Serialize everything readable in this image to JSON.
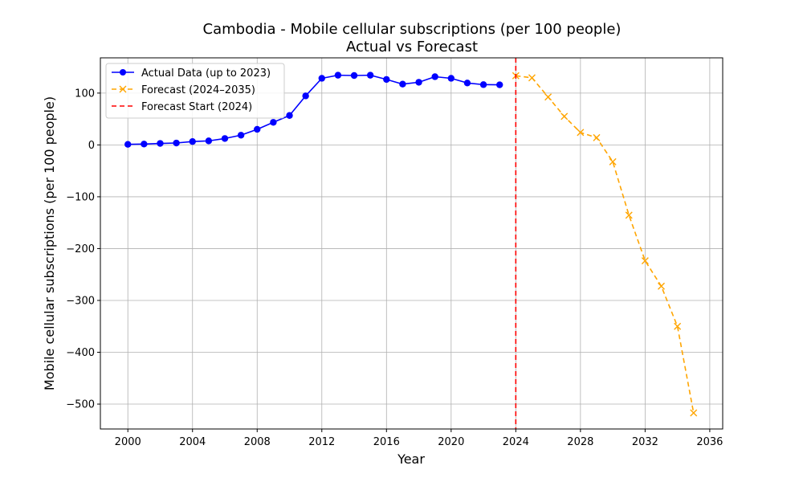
{
  "chart_data": {
    "type": "line",
    "title": "Cambodia - Mobile cellular subscriptions (per 100 people)",
    "subtitle": "Actual vs Forecast",
    "xlabel": "Year",
    "ylabel": "Mobile cellular subscriptions (per 100 people)",
    "xlim": [
      1998.3,
      2036.8
    ],
    "ylim": [
      -548,
      168
    ],
    "xticks": [
      2000,
      2004,
      2008,
      2012,
      2016,
      2020,
      2024,
      2028,
      2032,
      2036
    ],
    "yticks": [
      -500,
      -400,
      -300,
      -200,
      -100,
      0,
      100
    ],
    "grid": true,
    "legend_position": "top-left",
    "series": [
      {
        "name": "Actual Data (up to 2023)",
        "color": "#0000ff",
        "line_style": "solid",
        "marker": "circle",
        "x": [
          2000,
          2001,
          2002,
          2003,
          2004,
          2005,
          2006,
          2007,
          2008,
          2009,
          2010,
          2011,
          2012,
          2013,
          2014,
          2015,
          2016,
          2017,
          2018,
          2019,
          2020,
          2021,
          2022,
          2023
        ],
        "y": [
          1.1,
          1.7,
          2.9,
          3.7,
          6.5,
          7.8,
          12.4,
          18.8,
          30.1,
          43.6,
          56.8,
          94.6,
          128.5,
          134.5,
          133.9,
          134.5,
          126.3,
          117.3,
          120.9,
          131.6,
          128.5,
          119.5,
          116.3,
          116.0
        ]
      },
      {
        "name": "Forecast (2024–2035)",
        "color": "#ffa500",
        "line_style": "dashed",
        "marker": "x",
        "x": [
          2024,
          2025,
          2026,
          2027,
          2028,
          2029,
          2030,
          2031,
          2032,
          2033,
          2034,
          2035
        ],
        "y": [
          133.5,
          129.5,
          92.5,
          55.0,
          24.0,
          14.0,
          -32.5,
          -135.5,
          -223.5,
          -272.5,
          -350.0,
          -517.0
        ]
      }
    ],
    "reference_lines": [
      {
        "name": "Forecast Start (2024)",
        "x": 2024,
        "color": "#ff0000",
        "line_style": "dashed"
      }
    ]
  }
}
